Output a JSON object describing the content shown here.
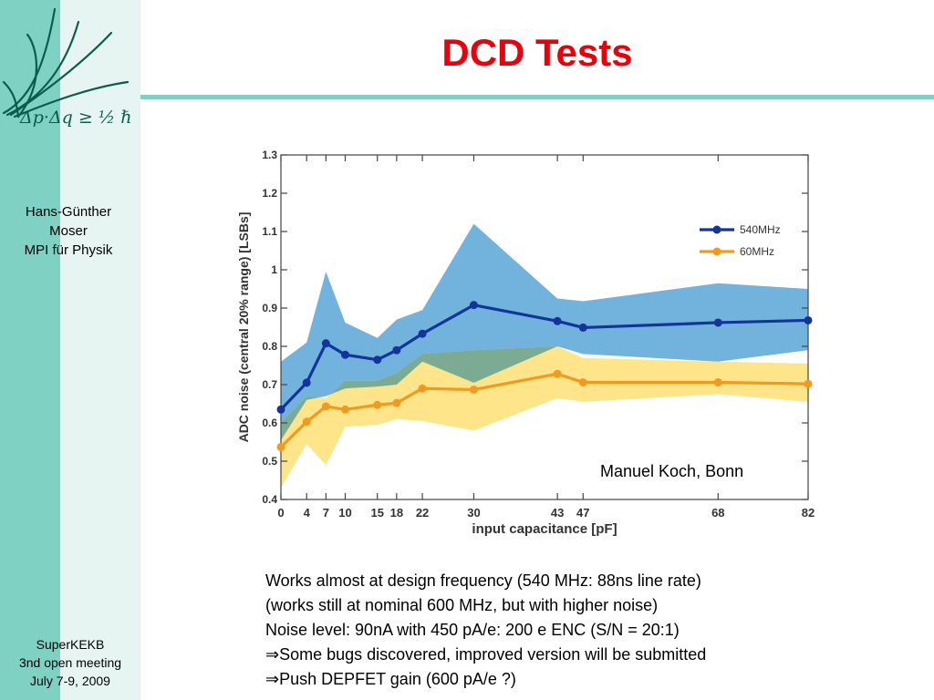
{
  "slide": {
    "title": "DCD Tests",
    "logo_formula": "Δp·Δq ≥ ½ ℏ",
    "author_lines": [
      "Hans-Günther",
      "Moser",
      "MPI für Physik"
    ],
    "event_lines": [
      "SuperKEKB",
      "3nd open meeting",
      "July 7-9, 2009"
    ],
    "credit": "Manuel Koch, Bonn",
    "notes": [
      "Works almost at design frequency (540 MHz: 88ns line rate)",
      "(works still at nominal 600 MHz, but with higher noise)",
      "Noise level: 90nA with 450 pA/e: 200 e ENC  (S/N = 20:1)",
      "⇒Some bugs discovered, improved version will be submitted",
      "⇒Push DEPFET gain (600 pA/e ?)"
    ]
  },
  "colors": {
    "title": "#e8000b",
    "accent": "#7fd1c3",
    "sidebar_light": "#e6f5f2",
    "series_540": "#13349a",
    "band_540": "#72b3dd",
    "series_60": "#f39a1e",
    "band_60": "#fee58a",
    "band_overlap": "#7bab93"
  },
  "chart_data": {
    "type": "line",
    "xlabel": "input capacitance [pF]",
    "ylabel": "ADC noise (central 20% range) [LSBs]",
    "x": [
      0,
      4,
      7,
      10,
      15,
      18,
      22,
      30,
      43,
      47,
      68,
      82
    ],
    "xlim": [
      0,
      82
    ],
    "ylim": [
      0.4,
      1.3
    ],
    "yticks": [
      0.4,
      0.5,
      0.6,
      0.7,
      0.8,
      0.9,
      1,
      1.1,
      1.2,
      1.3
    ],
    "legend_position": "top-right",
    "grid": false,
    "series": [
      {
        "name": "540MHz",
        "values": [
          0.635,
          0.705,
          0.808,
          0.778,
          0.765,
          0.79,
          0.833,
          0.908,
          0.866,
          0.849,
          0.862,
          0.868
        ],
        "band_high": [
          0.76,
          0.81,
          0.995,
          0.862,
          0.822,
          0.87,
          0.895,
          1.12,
          0.925,
          0.918,
          0.965,
          0.95
        ],
        "band_low": [
          0.555,
          0.66,
          0.67,
          0.69,
          0.695,
          0.7,
          0.76,
          0.705,
          0.8,
          0.78,
          0.76,
          0.79
        ]
      },
      {
        "name": "60MHz",
        "values": [
          0.537,
          0.603,
          0.643,
          0.635,
          0.647,
          0.652,
          0.69,
          0.687,
          0.728,
          0.706,
          0.706,
          0.702
        ],
        "band_high": [
          0.6,
          0.67,
          0.665,
          0.71,
          0.71,
          0.73,
          0.78,
          0.79,
          0.8,
          0.77,
          0.76,
          0.755
        ],
        "band_low": [
          0.43,
          0.545,
          0.49,
          0.59,
          0.595,
          0.61,
          0.605,
          0.58,
          0.665,
          0.655,
          0.675,
          0.655
        ]
      }
    ]
  }
}
